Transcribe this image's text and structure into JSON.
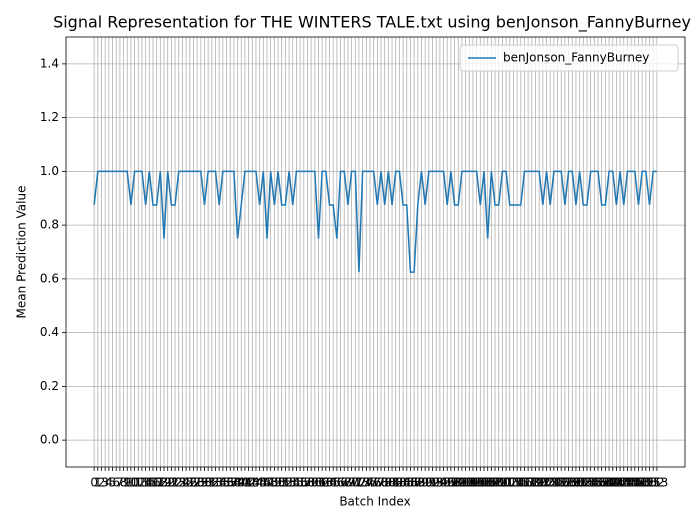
{
  "chart_data": {
    "type": "line",
    "title": "Signal Representation for THE WINTERS TALE.txt using benJonson_FannyBurney",
    "xlabel": "Batch Index",
    "ylabel": "Mean Prediction Value",
    "x": [
      0,
      1,
      2,
      3,
      4,
      5,
      6,
      7,
      8,
      9,
      10,
      11,
      12,
      13,
      14,
      15,
      16,
      17,
      18,
      19,
      20,
      21,
      22,
      23,
      24,
      25,
      26,
      27,
      28,
      29,
      30,
      31,
      32,
      33,
      34,
      35,
      36,
      37,
      38,
      39,
      40,
      41,
      42,
      43,
      44,
      45,
      46,
      47,
      48,
      49,
      50,
      51,
      52,
      53,
      54,
      55,
      56,
      57,
      58,
      59,
      60,
      61,
      62,
      63,
      64,
      65,
      66,
      67,
      68,
      69,
      70,
      71,
      72,
      73,
      74,
      75,
      76,
      77,
      78,
      79,
      80,
      81,
      82,
      83,
      84,
      85,
      86,
      87,
      88,
      89,
      90,
      91,
      92,
      93,
      94,
      95,
      96,
      97,
      98,
      99,
      100,
      101,
      102,
      103,
      104,
      105,
      106,
      107,
      108,
      109,
      110,
      111,
      112,
      113,
      114,
      115,
      116,
      117,
      118,
      119,
      120,
      121,
      122,
      123,
      124,
      125,
      126,
      127,
      128,
      129,
      130,
      131,
      132,
      133,
      134,
      135,
      136,
      137,
      138,
      139,
      140,
      141,
      142,
      143,
      144,
      145,
      146,
      147,
      148,
      149,
      150,
      151,
      152,
      153
    ],
    "series": [
      {
        "name": "benJonson_FannyBurney",
        "color": "#1f77b4",
        "values": [
          0.875,
          1,
          1,
          1,
          1,
          1,
          1,
          1,
          1,
          1,
          0.875,
          1,
          1,
          1,
          0.875,
          1,
          0.875,
          0.875,
          1,
          0.75,
          1,
          0.875,
          0.875,
          1,
          1,
          1,
          1,
          1,
          1,
          1,
          0.875,
          1,
          1,
          1,
          0.875,
          1,
          1,
          1,
          1,
          0.75,
          0.875,
          1,
          1,
          1,
          1,
          0.875,
          1,
          0.75,
          1,
          0.875,
          1,
          0.875,
          0.875,
          1,
          0.875,
          1,
          1,
          1,
          1,
          1,
          1,
          0.75,
          1,
          1,
          0.875,
          0.875,
          0.75,
          1,
          1,
          0.875,
          1,
          1,
          0.625,
          1,
          1,
          1,
          1,
          0.875,
          1,
          0.875,
          1,
          0.875,
          1,
          1,
          0.875,
          0.875,
          0.625,
          0.625,
          0.875,
          1,
          0.875,
          1,
          1,
          1,
          1,
          1,
          0.875,
          1,
          0.875,
          0.875,
          1,
          1,
          1,
          1,
          1,
          0.875,
          1,
          0.75,
          1,
          0.875,
          0.875,
          1,
          1,
          0.875,
          0.875,
          0.875,
          0.875,
          1,
          1,
          1,
          1,
          1,
          0.875,
          1,
          0.875,
          1,
          1,
          1,
          0.875,
          1,
          1,
          0.875,
          1,
          0.875,
          0.875,
          1,
          1,
          1,
          0.875,
          0.875,
          1,
          1,
          0.875,
          1,
          0.875,
          1,
          1,
          1,
          0.875,
          1,
          1,
          0.875,
          1,
          1
        ]
      }
    ],
    "xlim": [
      -7.65,
      160.65
    ],
    "xticks": [
      0,
      1,
      2,
      3,
      4,
      5,
      6,
      7,
      8,
      9,
      10,
      11,
      12,
      13,
      14,
      15,
      16,
      17,
      18,
      19,
      20,
      21,
      22,
      23,
      24,
      25,
      26,
      27,
      28,
      29,
      30,
      31,
      32,
      33,
      34,
      35,
      36,
      37,
      38,
      39,
      40,
      41,
      42,
      43,
      44,
      45,
      46,
      47,
      48,
      49,
      50,
      51,
      52,
      53,
      54,
      55,
      56,
      57,
      58,
      59,
      60,
      61,
      62,
      63,
      64,
      65,
      66,
      67,
      68,
      69,
      70,
      71,
      72,
      73,
      74,
      75,
      76,
      77,
      78,
      79,
      80,
      81,
      82,
      83,
      84,
      85,
      86,
      87,
      88,
      89,
      90,
      91,
      92,
      93,
      94,
      95,
      96,
      97,
      98,
      99,
      100,
      101,
      102,
      103,
      104,
      105,
      106,
      107,
      108,
      109,
      110,
      111,
      112,
      113,
      114,
      115,
      116,
      117,
      118,
      119,
      120,
      121,
      122,
      123,
      124,
      125,
      126,
      127,
      128,
      129,
      130,
      131,
      132,
      133,
      134,
      135,
      136,
      137,
      138,
      139,
      140,
      141,
      142,
      143,
      144,
      145,
      146,
      147,
      148,
      149,
      150,
      151,
      152,
      153
    ],
    "ylim": [
      -0.1,
      1.5
    ],
    "yticks": [
      {
        "value": 0,
        "label": "0.0"
      },
      0.2,
      0.4,
      0.6,
      0.8,
      {
        "value": 1,
        "label": "1.0"
      },
      1.2,
      1.4
    ],
    "grid": true,
    "legend": "upper right"
  }
}
